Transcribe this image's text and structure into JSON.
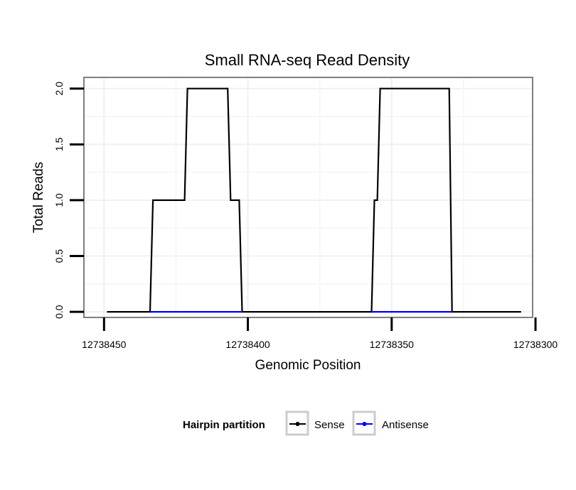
{
  "chart_data": {
    "type": "line",
    "title": "Small RNA-seq Read Density",
    "xlabel": "Genomic Position",
    "ylabel": "Total Reads",
    "xlim": [
      12738457,
      12738301
    ],
    "x_reversed": true,
    "ylim": [
      -0.05,
      2.1
    ],
    "grid": true,
    "x_ticks": [
      12738450,
      12738400,
      12738350,
      12738300
    ],
    "x_tick_labels": [
      "12738450",
      "12738400",
      "12738350",
      "12738300"
    ],
    "y_ticks": [
      0,
      0.5,
      1,
      1.5,
      2
    ],
    "y_tick_labels": [
      "0.0",
      "0.5",
      "1.0",
      "1.5",
      "2.0"
    ],
    "legend": {
      "title": "Hairpin partition",
      "position": "bottom",
      "entries": [
        "Sense",
        "Antisense"
      ]
    },
    "series": [
      {
        "name": "Sense",
        "color": "#000000",
        "points": [
          [
            12738449,
            0
          ],
          [
            12738434,
            0
          ],
          [
            12738433,
            1
          ],
          [
            12738422,
            1
          ],
          [
            12738421,
            2
          ],
          [
            12738407,
            2
          ],
          [
            12738406,
            1
          ],
          [
            12738403,
            1
          ],
          [
            12738402,
            0
          ],
          [
            12738357,
            0
          ],
          [
            12738356,
            1
          ],
          [
            12738355,
            1
          ],
          [
            12738354,
            2
          ],
          [
            12738330,
            2
          ],
          [
            12738329,
            0
          ],
          [
            12738305,
            0
          ]
        ]
      },
      {
        "name": "Antisense",
        "color": "#0000ff",
        "points": [
          [
            12738434,
            0
          ],
          [
            12738402,
            0
          ]
        ],
        "points_2": [
          [
            12738357,
            0
          ],
          [
            12738329,
            0
          ]
        ]
      }
    ]
  }
}
